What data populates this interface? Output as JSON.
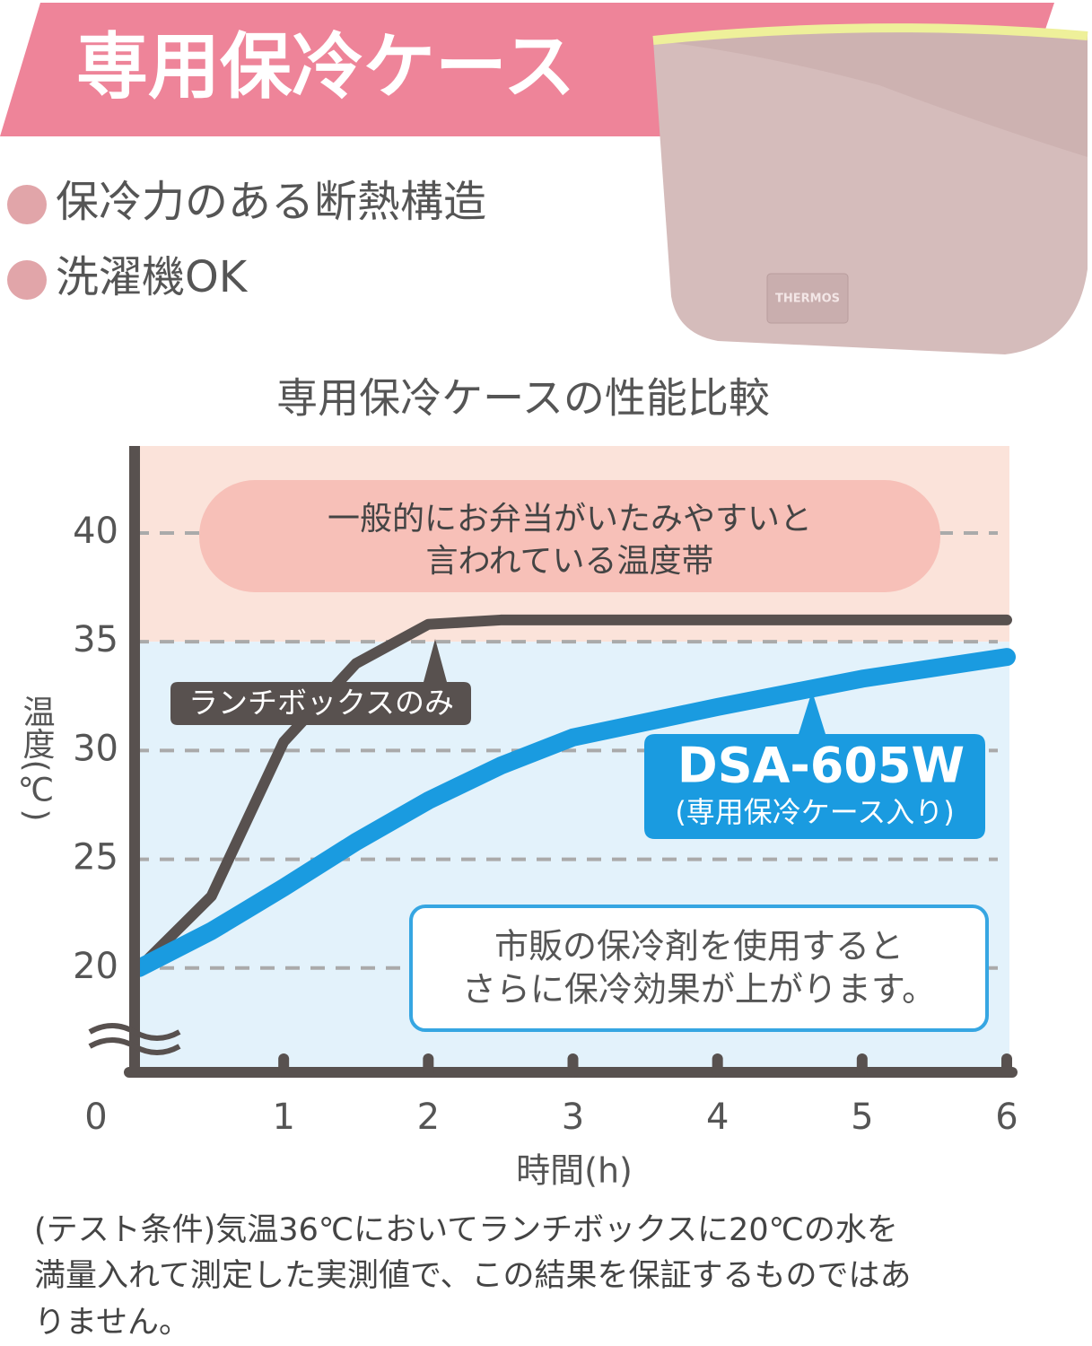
{
  "header": {
    "title": "専用保冷ケース",
    "bullets": [
      "保冷力のある断熱構造",
      "洗濯機OK"
    ],
    "product_tag": "THERMOS"
  },
  "chart_data": {
    "type": "line",
    "title": "専用保冷ケースの性能比較",
    "x_label": "時間(h)",
    "y_label": "温度(℃)",
    "x": [
      0,
      0.5,
      1,
      1.5,
      2,
      2.5,
      3,
      4,
      5,
      6
    ],
    "series": [
      {
        "name": "ランチボックスのみ",
        "color": "#58514f",
        "values": [
          20,
          23.3,
          30.4,
          34,
          35.8,
          36,
          36,
          36,
          36,
          36
        ]
      },
      {
        "name": "DSA-605W",
        "sublabel": "(専用保冷ケース入り)",
        "color": "#1a9be0",
        "values": [
          20,
          21.7,
          23.7,
          25.8,
          27.7,
          29.3,
          30.6,
          32,
          33.3,
          34.3
        ]
      }
    ],
    "xlim": [
      0,
      6
    ],
    "xticks": [
      0,
      1,
      2,
      3,
      4,
      5,
      6
    ],
    "ylim": [
      15,
      44
    ],
    "yticks": [
      20,
      25,
      30,
      35,
      40
    ],
    "grid": true,
    "band_edge": 35,
    "annotations": {
      "band": [
        "一般的にお弁当がいたみやすいと",
        "言われている温度帯"
      ],
      "note": [
        "市販の保冷剤を使用すると",
        "さらに保冷効果が上がります。"
      ]
    }
  },
  "footnote": [
    "(テスト条件)気温36℃においてランチボックスに20℃の水を",
    "満量入れて測定した実測値で、この結果を保証するものではあ",
    "りません。"
  ]
}
